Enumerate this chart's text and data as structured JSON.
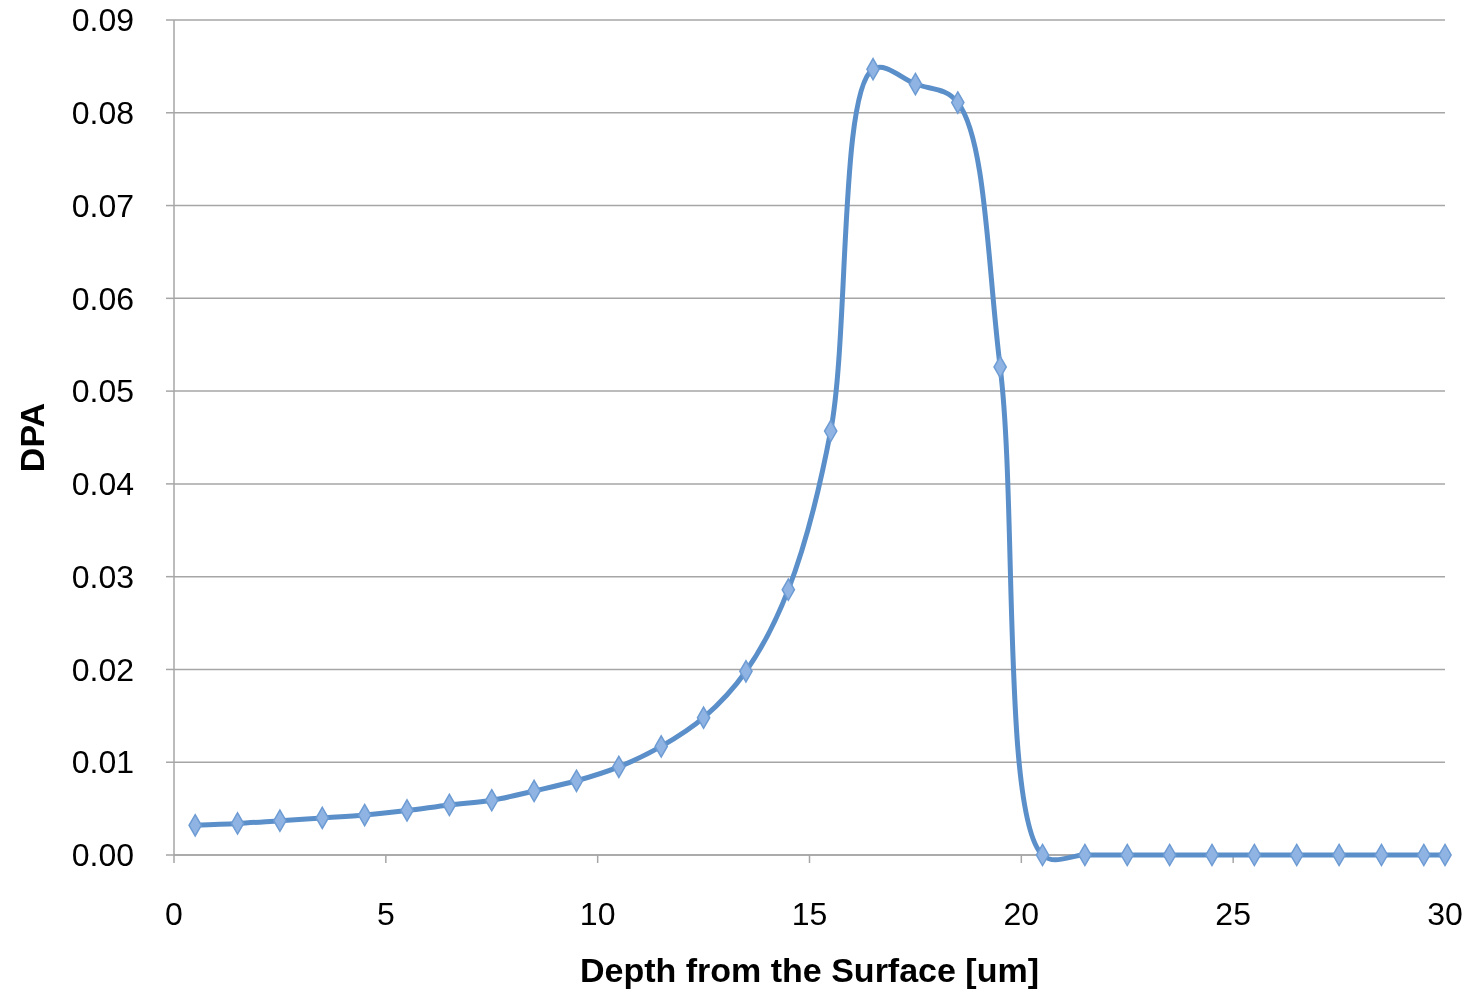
{
  "chart_data": {
    "type": "line",
    "xlabel": "Depth from the Surface [um]",
    "ylabel": "DPA",
    "x": [
      0.5,
      1.5,
      2.5,
      3.5,
      4.5,
      5.5,
      6.5,
      7.5,
      8.5,
      9.5,
      10.5,
      11.5,
      12.5,
      13.5,
      14.5,
      15.5,
      16.5,
      17.5,
      18.5,
      19.5,
      20.5,
      21.5,
      22.5,
      23.5,
      24.5,
      25.5,
      26.5,
      27.5,
      28.5,
      29.5,
      30
    ],
    "series": [
      {
        "color": "#5b8fc9",
        "values": [
          0.0032,
          0.0034,
          0.0037,
          0.004,
          0.0043,
          0.0048,
          0.0054,
          0.0059,
          0.0069,
          0.008,
          0.0095,
          0.0117,
          0.0148,
          0.0198,
          0.0286,
          0.0457,
          0.0847,
          0.0831,
          0.0811,
          0.0526,
          0,
          0,
          0,
          0,
          0,
          0,
          0,
          0,
          0,
          0,
          0
        ]
      }
    ],
    "xlim": [
      0,
      30
    ],
    "xticks": [
      0,
      5,
      10,
      15,
      20,
      25,
      30
    ],
    "ylim": [
      0,
      0.09
    ],
    "yticks": [
      {
        "value": 0,
        "label": "0.00"
      },
      {
        "value": 0.01,
        "label": "0.01"
      },
      {
        "value": 0.02,
        "label": "0.02"
      },
      {
        "value": 0.03,
        "label": "0.03"
      },
      {
        "value": 0.04,
        "label": "0.04"
      },
      {
        "value": 0.05,
        "label": "0.05"
      },
      {
        "value": 0.06,
        "label": "0.06"
      },
      {
        "value": 0.07,
        "label": "0.07"
      },
      {
        "value": 0.08,
        "label": "0.08"
      },
      {
        "value": 0.09,
        "label": "0.09"
      }
    ],
    "grid": "y",
    "marker": "diamond",
    "line_style": "solid"
  }
}
